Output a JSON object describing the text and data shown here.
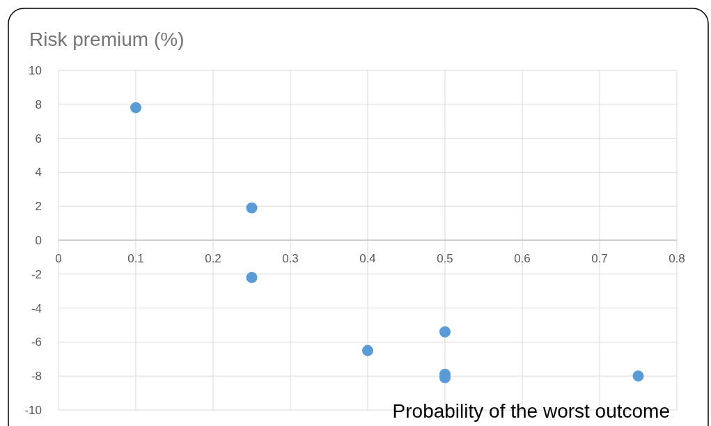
{
  "chart_data": {
    "type": "scatter",
    "ylabel": "Risk premium (%)",
    "xlabel": "Probability of the worst outcome",
    "x": [
      0.1,
      0.25,
      0.25,
      0.4,
      0.5,
      0.5,
      0.5,
      0.75
    ],
    "series": [
      {
        "color": "#5b9bd5",
        "values": [
          7.8,
          1.9,
          -2.2,
          -6.5,
          -5.4,
          -7.9,
          -8.1,
          -8.0
        ]
      }
    ],
    "xlim": [
      0,
      0.8
    ],
    "xticks": [
      0,
      0.1,
      0.2,
      0.3,
      0.4,
      0.5,
      0.6,
      0.7,
      0.8
    ],
    "ylim": [
      -10,
      10
    ],
    "yticks": [
      -10,
      -8,
      -6,
      -4,
      -2,
      0,
      2,
      4,
      6,
      8,
      10
    ],
    "grid": true,
    "marker": "circle"
  }
}
